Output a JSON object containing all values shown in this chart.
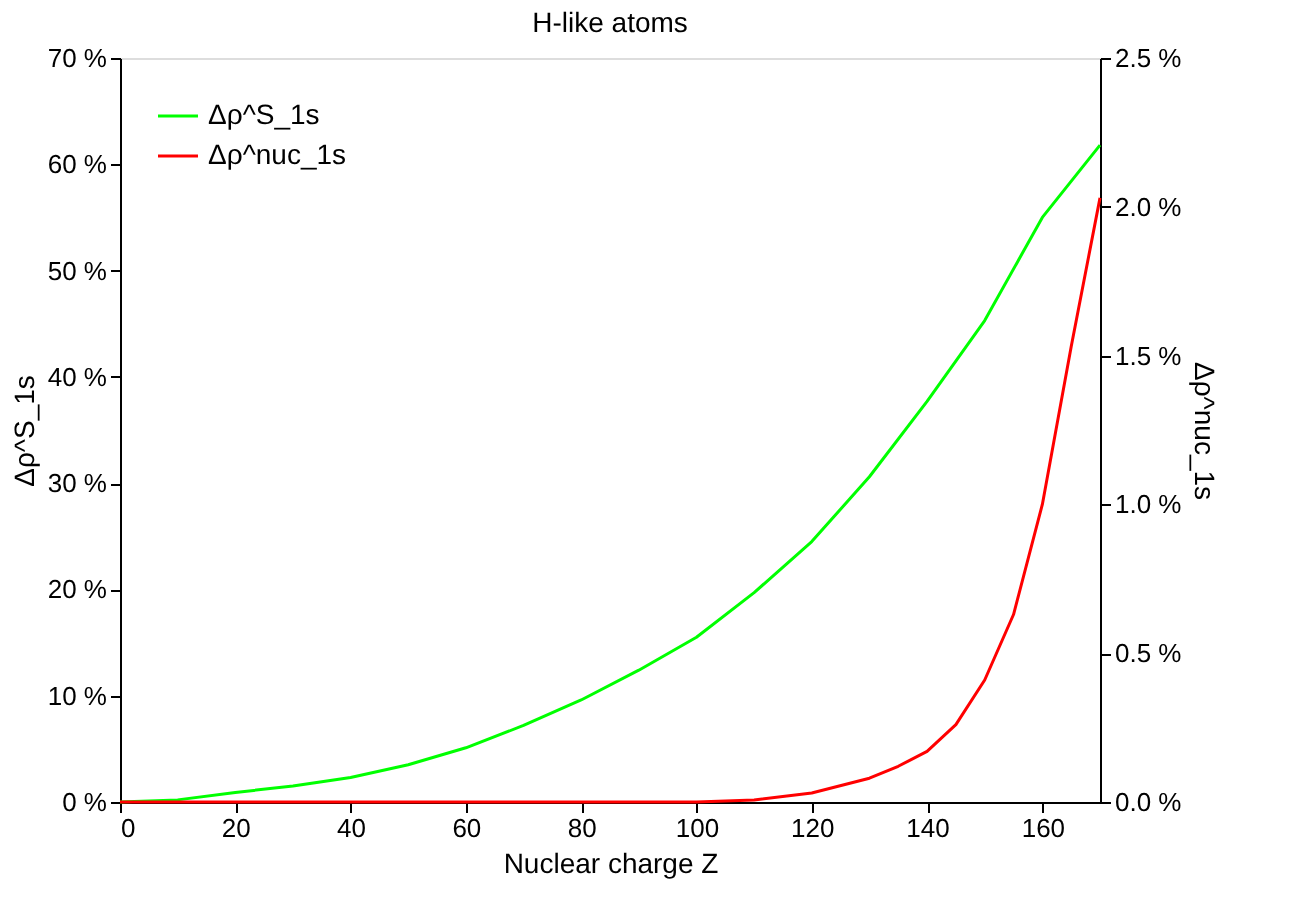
{
  "chart_data": {
    "type": "line",
    "title": "H-like atoms",
    "xlabel": "Nuclear charge Z",
    "ylabel": "Δρ^S_1s",
    "y2label": "Δρ^nuc_1s",
    "x": [
      0,
      10,
      20,
      30,
      40,
      50,
      60,
      70,
      80,
      90,
      100,
      110,
      120,
      130,
      140,
      150,
      160,
      170
    ],
    "xlim": [
      0,
      170
    ],
    "xticks": [
      0,
      20,
      40,
      60,
      80,
      100,
      120,
      140,
      160
    ],
    "ylim": [
      0,
      70
    ],
    "yticks": [
      {
        "value": 0,
        "label": "0 %"
      },
      {
        "value": 10,
        "label": "10 %"
      },
      {
        "value": 20,
        "label": "20 %"
      },
      {
        "value": 30,
        "label": "30 %"
      },
      {
        "value": 40,
        "label": "40 %"
      },
      {
        "value": 50,
        "label": "50 %"
      },
      {
        "value": 60,
        "label": "60 %"
      },
      {
        "value": 70,
        "label": "70 %"
      }
    ],
    "y2lim": [
      0,
      2.5
    ],
    "y2ticks": [
      {
        "value": 0,
        "label": "0.0 %"
      },
      {
        "value": 0.5,
        "label": "0.5 %"
      },
      {
        "value": 1.0,
        "label": "1.0 %"
      },
      {
        "value": 1.5,
        "label": "1.5 %"
      },
      {
        "value": 2.0,
        "label": "2.0 %"
      },
      {
        "value": 2.5,
        "label": "2.5 %"
      }
    ],
    "series": [
      {
        "name": "Δρ^S_1s",
        "color": "#00ff00",
        "values": [
          0,
          0.2,
          0.9,
          1.5,
          2.3,
          3.5,
          5.1,
          7.2,
          9.6,
          12.4,
          15.5,
          19.7,
          24.5,
          30.6,
          37.7,
          45.3,
          55,
          61.8
        ]
      },
      {
        "name": "Δρ^nuc_1s",
        "color": "#ff0000",
        "axis": "y2",
        "x": [
          0,
          20,
          40,
          60,
          80,
          100,
          110,
          120,
          130,
          135,
          140,
          145,
          150,
          155,
          160,
          165,
          170
        ],
        "values": [
          0,
          0,
          0,
          0,
          0,
          0,
          0.007,
          0.03,
          0.08,
          0.12,
          0.17,
          0.26,
          0.41,
          0.63,
          1.0,
          1.53,
          2.03
        ]
      }
    ],
    "grid": false,
    "legend": "top left",
    "line_style": "solid",
    "marker": "none"
  }
}
